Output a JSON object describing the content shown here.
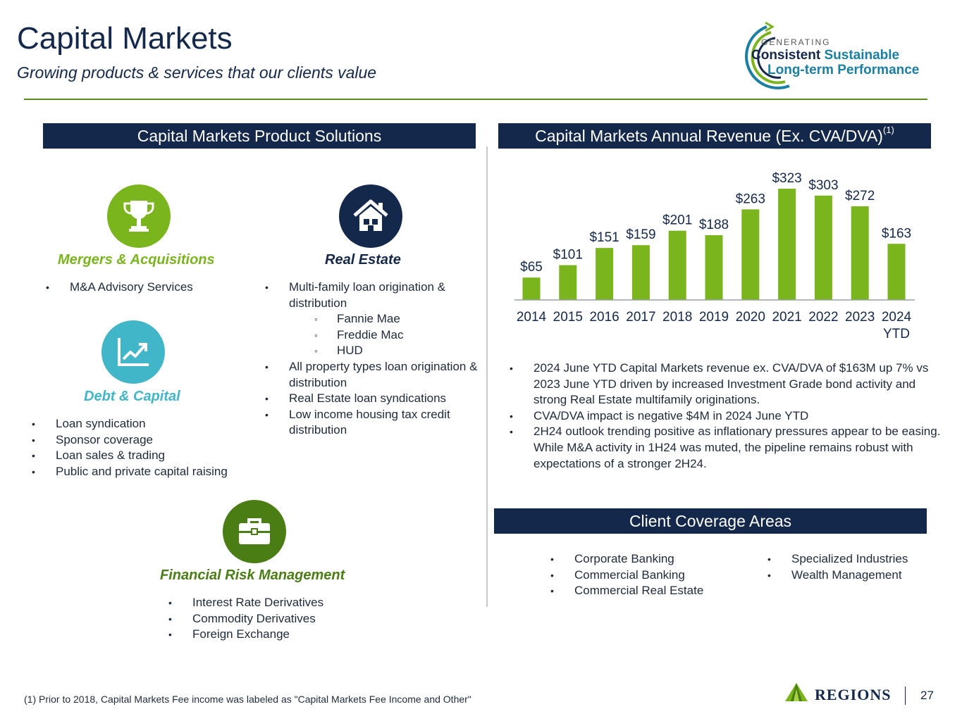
{
  "header": {
    "title": "Capital Markets",
    "subtitle": "Growing products & services that our clients value",
    "badge": {
      "line1": "GENERATING",
      "word1": "Consistent",
      "word2": "Sustainable",
      "line3": "Long-term Performance"
    }
  },
  "products": {
    "heading": "Capital Markets Product Solutions",
    "categories": [
      {
        "icon": "trophy-icon",
        "title": "Mergers & Acquisitions",
        "color": "#7ab51d",
        "items": [
          "M&A Advisory Services"
        ]
      },
      {
        "icon": "house-icon",
        "title": "Real Estate",
        "color": "#14284b",
        "items": [
          "Multi-family loan origination & distribution",
          "Fannie Mae",
          "Freddie Mac",
          "HUD",
          "All property types loan origination & distribution",
          "Real Estate loan syndications",
          "Low income housing tax credit distribution"
        ]
      },
      {
        "icon": "chart-trend-icon",
        "title": "Debt & Capital",
        "color": "#41b6c9",
        "items": [
          "Loan syndication",
          "Sponsor coverage",
          "Loan sales & trading",
          "Public and private capital raising"
        ]
      },
      {
        "icon": "briefcase-icon",
        "title": "Financial Risk Management",
        "color": "#4a7d14",
        "items": [
          "Interest Rate Derivatives",
          "Commodity Derivatives",
          "Foreign Exchange"
        ]
      }
    ]
  },
  "revenue": {
    "heading": "Capital Markets Annual Revenue (Ex. CVA/DVA)",
    "heading_note": "(1)",
    "notes": [
      "2024 June YTD Capital Markets revenue ex. CVA/DVA of $163M up 7% vs 2023 June YTD driven by increased Investment Grade bond activity and strong Real Estate multifamily originations.",
      "CVA/DVA impact is negative $4M in 2024 June YTD",
      "2H24 outlook trending positive as inflationary pressures appear to be easing. While M&A activity in 1H24 was muted, the pipeline remains robust with expectations of a stronger 2H24."
    ]
  },
  "chart_data": {
    "type": "bar",
    "categories": [
      "2014",
      "2015",
      "2016",
      "2017",
      "2018",
      "2019",
      "2020",
      "2021",
      "2022",
      "2023",
      "2024 YTD"
    ],
    "values": [
      65,
      101,
      151,
      159,
      201,
      188,
      263,
      323,
      303,
      272,
      163
    ],
    "labels": [
      "$65",
      "$101",
      "$151",
      "$159",
      "$201",
      "$188",
      "$263",
      "$323",
      "$303",
      "$272",
      "$163"
    ],
    "title": "Capital Markets Annual Revenue (Ex. CVA/DVA)",
    "xlabel": "",
    "ylabel": "",
    "ylim": [
      0,
      340
    ],
    "grid": false,
    "bar_color": "#7ab51d"
  },
  "coverage": {
    "heading": "Client Coverage Areas",
    "left": [
      "Corporate Banking",
      "Commercial Banking",
      "Commercial Real Estate"
    ],
    "right": [
      "Specialized Industries",
      "Wealth Management"
    ]
  },
  "footer": {
    "footnote": "(1) Prior to 2018, Capital Markets Fee income was labeled as \"Capital Markets Fee Income and Other\"",
    "logo": "REGIONS",
    "page_number": "27"
  }
}
